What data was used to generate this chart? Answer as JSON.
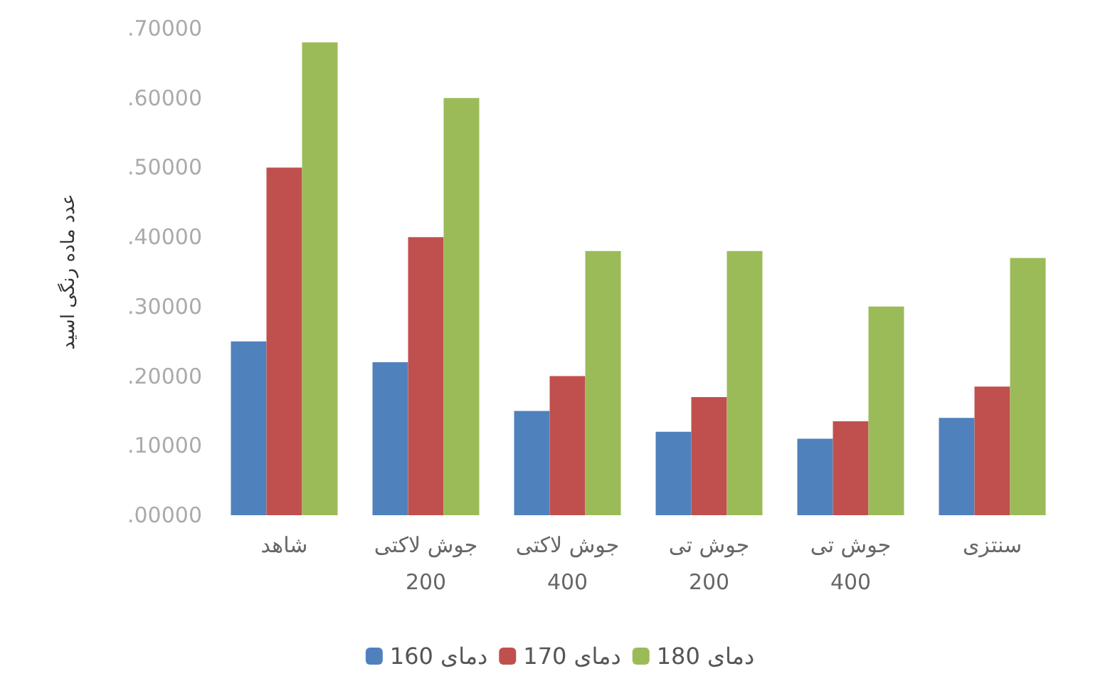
{
  "chart_data": {
    "type": "bar",
    "ylabel": "عدد ماده رنگی اسید",
    "categories": [
      "شاهد",
      "جوش لاکتی\n200",
      "جوش لاکتی\n400",
      "جوش تی\n200",
      "جوش تی\n400",
      "سنتزی"
    ],
    "series": [
      {
        "name": "دمای 160",
        "color": "#4f81bd",
        "values": [
          0.25,
          0.22,
          0.15,
          0.12,
          0.11,
          0.14
        ]
      },
      {
        "name": "دمای 170",
        "color": "#c0504d",
        "values": [
          0.5,
          0.4,
          0.2,
          0.17,
          0.135,
          0.185
        ]
      },
      {
        "name": "دمای 180",
        "color": "#9bbb59",
        "values": [
          0.68,
          0.6,
          0.38,
          0.38,
          0.3,
          0.37
        ]
      }
    ],
    "ylim": [
      0,
      0.7
    ],
    "yticks": [
      {
        "value": 0,
        "label": ".00000"
      },
      {
        "value": 0.1,
        "label": ".10000"
      },
      {
        "value": 0.2,
        "label": ".20000"
      },
      {
        "value": 0.3,
        "label": ".30000"
      },
      {
        "value": 0.4,
        "label": ".40000"
      },
      {
        "value": 0.5,
        "label": ".50000"
      },
      {
        "value": 0.6,
        "label": ".60000"
      },
      {
        "value": 0.7,
        "label": ".70000"
      }
    ],
    "grid": false,
    "legend": "bottom"
  }
}
